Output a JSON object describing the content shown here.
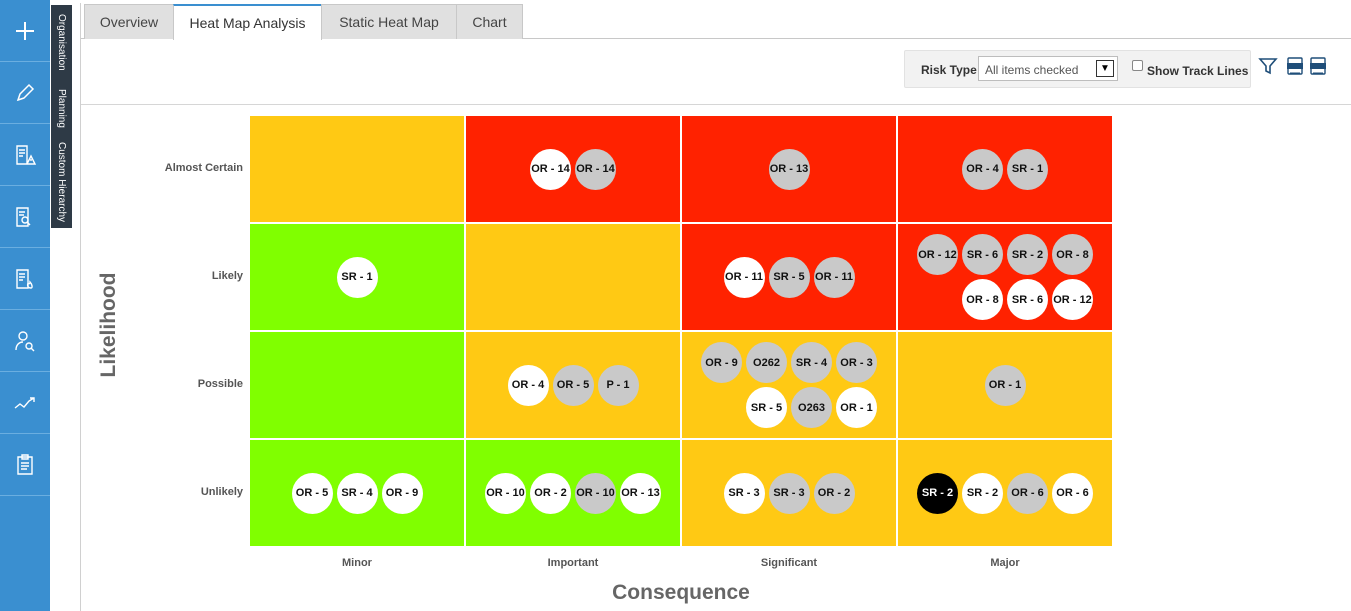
{
  "sidebar": {
    "items": [
      {
        "icon": "plus-icon"
      },
      {
        "icon": "pencil-icon"
      },
      {
        "icon": "risk-report-icon"
      },
      {
        "icon": "document-search-icon"
      },
      {
        "icon": "fire-report-icon"
      },
      {
        "icon": "user-search-icon"
      },
      {
        "icon": "trend-chart-icon"
      },
      {
        "icon": "clipboard-icon"
      }
    ],
    "accent": "#3a8fd0"
  },
  "vertical_tabs": [
    "Organisation",
    "Planning",
    "Custom Hierarchy"
  ],
  "tabs": [
    {
      "label": "Overview",
      "active": false
    },
    {
      "label": "Heat Map Analysis",
      "active": true
    },
    {
      "label": "Static Heat Map",
      "active": false
    },
    {
      "label": "Chart",
      "active": false
    }
  ],
  "toolbar": {
    "risk_type_label": "Risk Type",
    "risk_type_value": "All items checked",
    "show_track_lines_label": "Show Track Lines",
    "show_track_lines_checked": false,
    "icons": [
      "filter-icon",
      "doc-export-icon",
      "pdf-export-icon"
    ]
  },
  "heatmap": {
    "y_title": "Likelihood",
    "x_title": "Consequence",
    "rows": [
      "Almost Certain",
      "Likely",
      "Possible",
      "Unlikely"
    ],
    "columns": [
      "Minor",
      "Important",
      "Significant",
      "Major"
    ],
    "colors": {
      "red": "#ff2200",
      "amber": "#ffc914",
      "green": "#80ff00"
    },
    "cells": [
      [
        {
          "color": "amber",
          "items": []
        },
        {
          "color": "red",
          "items": [
            {
              "label": "OR - 14",
              "style": "white"
            },
            {
              "label": "OR - 14",
              "style": "grey"
            }
          ]
        },
        {
          "color": "red",
          "items": [
            {
              "label": "OR - 13",
              "style": "grey"
            }
          ]
        },
        {
          "color": "red",
          "items": [
            {
              "label": "OR - 4",
              "style": "grey"
            },
            {
              "label": "SR - 1",
              "style": "grey"
            }
          ]
        }
      ],
      [
        {
          "color": "green",
          "items": [
            {
              "label": "SR - 1",
              "style": "white"
            }
          ]
        },
        {
          "color": "amber",
          "items": []
        },
        {
          "color": "red",
          "items": [
            {
              "label": "OR - 11",
              "style": "white"
            },
            {
              "label": "SR - 5",
              "style": "grey"
            },
            {
              "label": "OR - 11",
              "style": "grey"
            }
          ]
        },
        {
          "color": "red",
          "items": [
            {
              "label": "OR - 12",
              "style": "grey"
            },
            {
              "label": "SR - 6",
              "style": "grey"
            },
            {
              "label": "SR - 2",
              "style": "grey"
            },
            {
              "label": "OR - 8",
              "style": "grey"
            },
            {
              "label": "OR - 8",
              "style": "white"
            },
            {
              "label": "SR - 6",
              "style": "white"
            },
            {
              "label": "OR - 12",
              "style": "white"
            }
          ]
        }
      ],
      [
        {
          "color": "green",
          "items": []
        },
        {
          "color": "amber",
          "items": [
            {
              "label": "OR - 4",
              "style": "white"
            },
            {
              "label": "OR - 5",
              "style": "grey"
            },
            {
              "label": "P - 1",
              "style": "grey"
            }
          ]
        },
        {
          "color": "amber",
          "items": [
            {
              "label": "OR - 9",
              "style": "grey"
            },
            {
              "label": "O262",
              "style": "grey"
            },
            {
              "label": "SR - 4",
              "style": "grey"
            },
            {
              "label": "OR - 3",
              "style": "grey"
            },
            {
              "label": "SR - 5",
              "style": "white"
            },
            {
              "label": "O263",
              "style": "grey"
            },
            {
              "label": "OR - 1",
              "style": "white"
            }
          ]
        },
        {
          "color": "amber",
          "items": [
            {
              "label": "OR - 1",
              "style": "grey"
            }
          ]
        }
      ],
      [
        {
          "color": "green",
          "items": [
            {
              "label": "OR - 5",
              "style": "white"
            },
            {
              "label": "SR - 4",
              "style": "white"
            },
            {
              "label": "OR - 9",
              "style": "white"
            }
          ]
        },
        {
          "color": "green",
          "items": [
            {
              "label": "OR - 10",
              "style": "white"
            },
            {
              "label": "OR - 2",
              "style": "white"
            },
            {
              "label": "OR - 10",
              "style": "grey"
            },
            {
              "label": "OR - 13",
              "style": "white"
            }
          ]
        },
        {
          "color": "amber",
          "items": [
            {
              "label": "SR - 3",
              "style": "white"
            },
            {
              "label": "SR - 3",
              "style": "grey"
            },
            {
              "label": "OR - 2",
              "style": "grey"
            }
          ]
        },
        {
          "color": "amber",
          "items": [
            {
              "label": "SR - 2",
              "style": "black"
            },
            {
              "label": "SR - 2",
              "style": "white"
            },
            {
              "label": "OR - 6",
              "style": "grey"
            },
            {
              "label": "OR - 6",
              "style": "white"
            }
          ]
        }
      ]
    ]
  }
}
